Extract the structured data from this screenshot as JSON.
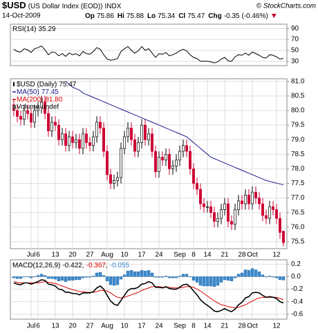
{
  "header": {
    "symbol": "$USD",
    "name": "(US Dollar Index (EOD))",
    "exchange": "INDX",
    "source": "© StockCharts.com",
    "date": "14-Oct-2009",
    "quote": [
      {
        "label": "Op",
        "value": 75.86
      },
      {
        "label": "Hi",
        "value": 75.88
      },
      {
        "label": "Lo",
        "value": 75.34
      },
      {
        "label": "Cl",
        "value": 75.47
      },
      {
        "label": "Chg",
        "value": -0.35
      }
    ],
    "change_pct": "(-0.46%)"
  },
  "chart_data": [
    {
      "type": "line",
      "name": "RSI(14)",
      "color": "#000000",
      "values": [
        52,
        48,
        47,
        53,
        51,
        46,
        53,
        55,
        58,
        51,
        42,
        47,
        46,
        40,
        44,
        39,
        45,
        42,
        44,
        40,
        48,
        44,
        43,
        48,
        55,
        52,
        42,
        34,
        32,
        33,
        35,
        48,
        53,
        57,
        50,
        45,
        49,
        57,
        50,
        53,
        45,
        37,
        44,
        43,
        46,
        40,
        42,
        45,
        49,
        52,
        49,
        42,
        37,
        35,
        30,
        30,
        30,
        29,
        27,
        29,
        34,
        37,
        31,
        30,
        38,
        42,
        41,
        45,
        41,
        47,
        44,
        41,
        37,
        36,
        42,
        41,
        38,
        34,
        35.29
      ],
      "ylim": [
        22,
        98
      ],
      "yticks": [
        90,
        70,
        50,
        30
      ],
      "grid": true
    },
    {
      "type": "candlestick",
      "series_name": "$USD (Daily)",
      "legend": "top-left",
      "grid": true,
      "up_color": "#ffffff",
      "down_color": "#cc0033",
      "categories": [
        null,
        null,
        null,
        null,
        null,
        "Jul",
        null,
        "6",
        null,
        null,
        null,
        null,
        "13",
        null,
        null,
        null,
        null,
        "20",
        null,
        null,
        null,
        null,
        "27",
        null,
        null,
        null,
        null,
        "Aug",
        null,
        null,
        null,
        null,
        "10",
        null,
        null,
        null,
        null,
        "17",
        null,
        null,
        null,
        null,
        "24",
        null,
        null,
        null,
        null,
        null,
        "Sep",
        null,
        null,
        null,
        "8",
        null,
        null,
        null,
        "14",
        null,
        null,
        null,
        null,
        "21",
        null,
        null,
        null,
        null,
        "28",
        null,
        null,
        "Oct",
        null,
        null,
        null,
        null,
        null,
        null,
        "12",
        null,
        null
      ],
      "open": [
        80.2,
        80.0,
        79.8,
        79.7,
        80.0,
        79.9,
        79.6,
        80.0,
        80.1,
        80.3,
        79.9,
        79.3,
        79.6,
        79.5,
        79.0,
        79.2,
        78.8,
        79.1,
        78.9,
        79.0,
        78.7,
        79.2,
        78.9,
        78.8,
        79.1,
        79.6,
        79.4,
        78.6,
        77.8,
        77.5,
        77.6,
        77.7,
        78.7,
        79.1,
        79.4,
        79.0,
        78.6,
        78.9,
        79.5,
        79.0,
        79.2,
        78.6,
        77.9,
        78.4,
        78.3,
        78.5,
        78.0,
        78.1,
        78.3,
        78.6,
        78.8,
        78.6,
        78.0,
        77.5,
        77.3,
        76.8,
        76.7,
        76.7,
        76.5,
        76.2,
        76.3,
        76.6,
        76.8,
        76.2,
        76.1,
        76.6,
        76.9,
        76.8,
        77.1,
        76.8,
        77.2,
        77.0,
        76.8,
        76.4,
        76.3,
        76.7,
        76.6,
        76.3,
        75.86
      ],
      "high": [
        80.4,
        80.2,
        80.0,
        80.2,
        80.2,
        80.1,
        80.2,
        80.3,
        80.5,
        80.5,
        80.1,
        79.8,
        79.8,
        79.7,
        79.4,
        79.4,
        79.3,
        79.3,
        79.2,
        79.2,
        79.4,
        79.4,
        79.1,
        79.3,
        79.8,
        79.8,
        79.6,
        78.8,
        78.0,
        77.8,
        77.9,
        78.9,
        79.3,
        79.6,
        79.6,
        79.2,
        79.1,
        79.7,
        79.7,
        79.4,
        79.4,
        78.8,
        78.6,
        78.6,
        78.7,
        78.7,
        78.3,
        78.5,
        78.8,
        79.0,
        79.0,
        78.8,
        78.2,
        77.7,
        77.5,
        77.0,
        76.9,
        76.9,
        76.7,
        76.5,
        76.8,
        77.0,
        77.0,
        76.4,
        76.8,
        77.1,
        77.1,
        77.3,
        77.3,
        77.4,
        77.4,
        77.2,
        77.0,
        76.6,
        76.9,
        76.9,
        76.8,
        76.5,
        75.88
      ],
      "low": [
        79.8,
        79.6,
        79.5,
        79.5,
        79.7,
        79.4,
        79.4,
        79.8,
        79.9,
        79.7,
        79.1,
        79.1,
        79.3,
        78.8,
        78.8,
        78.6,
        78.6,
        78.7,
        78.7,
        78.5,
        78.5,
        78.7,
        78.6,
        78.6,
        78.9,
        79.2,
        78.4,
        77.6,
        77.3,
        77.3,
        77.4,
        77.5,
        78.5,
        78.9,
        78.8,
        78.4,
        78.4,
        78.7,
        78.8,
        78.8,
        78.4,
        77.7,
        77.7,
        78.1,
        78.1,
        77.8,
        77.8,
        77.9,
        78.1,
        78.4,
        78.4,
        77.8,
        77.3,
        77.1,
        76.6,
        76.5,
        76.5,
        76.3,
        76.0,
        76.0,
        76.1,
        76.4,
        76.0,
        75.9,
        75.9,
        76.4,
        76.6,
        76.6,
        76.6,
        76.6,
        76.8,
        76.6,
        76.2,
        76.1,
        76.1,
        76.4,
        76.1,
        75.6,
        75.34
      ],
      "close": [
        80.0,
        79.8,
        79.7,
        80.0,
        79.9,
        79.6,
        80.0,
        80.1,
        80.3,
        79.9,
        79.3,
        79.6,
        79.5,
        79.0,
        79.2,
        78.8,
        79.1,
        78.9,
        79.0,
        78.7,
        79.2,
        78.9,
        78.8,
        79.1,
        79.6,
        79.4,
        78.6,
        77.8,
        77.5,
        77.6,
        77.7,
        78.7,
        79.1,
        79.4,
        79.0,
        78.6,
        78.9,
        79.5,
        79.0,
        79.2,
        78.6,
        77.9,
        78.4,
        78.3,
        78.5,
        78.0,
        78.1,
        78.3,
        78.6,
        78.8,
        78.6,
        78.0,
        77.5,
        77.3,
        76.8,
        76.7,
        76.7,
        76.5,
        76.2,
        76.3,
        76.6,
        76.8,
        76.2,
        76.1,
        76.6,
        76.9,
        76.8,
        77.1,
        76.8,
        77.2,
        77.0,
        76.8,
        76.4,
        76.3,
        76.7,
        76.6,
        76.3,
        75.82,
        75.47
      ],
      "series": [
        {
          "name": "MA(50)",
          "color": "#1a1a8c",
          "values": [
            null,
            null,
            null,
            null,
            null,
            null,
            null,
            null,
            null,
            null,
            null,
            null,
            null,
            null,
            null,
            81.0,
            80.9,
            80.8,
            80.75,
            80.7,
            80.6,
            80.55,
            80.5,
            80.45,
            80.4,
            80.35,
            80.3,
            80.25,
            80.2,
            80.15,
            80.1,
            80.05,
            80.0,
            79.95,
            79.9,
            79.85,
            79.8,
            79.75,
            79.7,
            79.65,
            79.6,
            79.55,
            79.5,
            79.45,
            79.4,
            79.35,
            79.3,
            79.25,
            79.2,
            79.15,
            79.1,
            79.0,
            78.9,
            78.8,
            78.7,
            78.6,
            78.5,
            78.4,
            78.35,
            78.3,
            78.25,
            78.2,
            78.15,
            78.1,
            78.05,
            78.0,
            77.95,
            77.9,
            77.85,
            77.8,
            77.75,
            77.7,
            77.65,
            77.6,
            77.57,
            77.54,
            77.51,
            77.48,
            77.45
          ]
        },
        {
          "name": "MA(200)",
          "color": "#dd0000",
          "value_label": "81.80"
        }
      ],
      "volume_label": "Volume undef",
      "ylim": [
        75.26,
        81.09
      ],
      "yticks": [
        75.5,
        {
          "value": 76,
          "label": "76.0"
        },
        76.5,
        {
          "value": 77,
          "label": "77.0"
        },
        77.5,
        {
          "value": 78,
          "label": "78.0"
        },
        78.5,
        {
          "value": 79,
          "label": "79.0"
        },
        79.5,
        {
          "value": 80,
          "label": "80.0"
        },
        80.5,
        {
          "value": 81,
          "label": "81.0"
        }
      ]
    },
    {
      "type": "macd",
      "name": "MACD(12,26,9)",
      "separator": ",",
      "grid": true,
      "categories": [
        null,
        null,
        null,
        null,
        null,
        "Jul",
        null,
        "6",
        null,
        null,
        null,
        null,
        "13",
        null,
        null,
        null,
        null,
        "20",
        null,
        null,
        null,
        null,
        "27",
        null,
        null,
        null,
        null,
        "Aug",
        null,
        null,
        null,
        null,
        "10",
        null,
        null,
        null,
        null,
        "17",
        null,
        null,
        null,
        null,
        "24",
        null,
        null,
        null,
        null,
        null,
        "Sep",
        null,
        null,
        null,
        "8",
        null,
        null,
        null,
        "14",
        null,
        null,
        null,
        null,
        "21",
        null,
        null,
        null,
        null,
        "28",
        null,
        null,
        "Oct",
        null,
        null,
        null,
        null,
        null,
        null,
        "12",
        null,
        null
      ],
      "macd": {
        "color": "#000000",
        "values": [
          -0.1,
          -0.12,
          -0.13,
          -0.1,
          -0.1,
          -0.12,
          -0.1,
          -0.08,
          -0.05,
          -0.06,
          -0.12,
          -0.13,
          -0.15,
          -0.2,
          -0.21,
          -0.25,
          -0.25,
          -0.27,
          -0.27,
          -0.29,
          -0.26,
          -0.26,
          -0.26,
          -0.24,
          -0.18,
          -0.15,
          -0.2,
          -0.3,
          -0.39,
          -0.44,
          -0.46,
          -0.38,
          -0.3,
          -0.22,
          -0.19,
          -0.19,
          -0.17,
          -0.12,
          -0.11,
          -0.08,
          -0.1,
          -0.17,
          -0.17,
          -0.18,
          -0.16,
          -0.19,
          -0.2,
          -0.2,
          -0.17,
          -0.13,
          -0.12,
          -0.16,
          -0.23,
          -0.29,
          -0.37,
          -0.42,
          -0.46,
          -0.5,
          -0.55,
          -0.56,
          -0.54,
          -0.51,
          -0.54,
          -0.56,
          -0.52,
          -0.45,
          -0.41,
          -0.34,
          -0.32,
          -0.26,
          -0.25,
          -0.26,
          -0.3,
          -0.33,
          -0.32,
          -0.33,
          -0.35,
          -0.4,
          -0.422
        ]
      },
      "signal": {
        "color": "#dd0000",
        "values": [
          -0.08,
          -0.09,
          -0.1,
          -0.1,
          -0.1,
          -0.1,
          -0.1,
          -0.1,
          -0.09,
          -0.08,
          -0.09,
          -0.1,
          -0.11,
          -0.13,
          -0.15,
          -0.17,
          -0.19,
          -0.21,
          -0.22,
          -0.24,
          -0.24,
          -0.25,
          -0.25,
          -0.25,
          -0.24,
          -0.22,
          -0.22,
          -0.23,
          -0.26,
          -0.3,
          -0.33,
          -0.34,
          -0.33,
          -0.31,
          -0.29,
          -0.27,
          -0.25,
          -0.22,
          -0.2,
          -0.18,
          -0.16,
          -0.16,
          -0.16,
          -0.17,
          -0.17,
          -0.17,
          -0.18,
          -0.18,
          -0.18,
          -0.17,
          -0.16,
          -0.16,
          -0.17,
          -0.2,
          -0.23,
          -0.27,
          -0.31,
          -0.35,
          -0.39,
          -0.42,
          -0.45,
          -0.46,
          -0.48,
          -0.49,
          -0.5,
          -0.49,
          -0.47,
          -0.45,
          -0.42,
          -0.39,
          -0.36,
          -0.34,
          -0.33,
          -0.33,
          -0.33,
          -0.33,
          -0.33,
          -0.35,
          -0.367
        ]
      },
      "histogram": {
        "color": "#3a8ad0",
        "values": [
          -0.02,
          -0.03,
          -0.03,
          0.0,
          0.0,
          -0.02,
          0.0,
          0.02,
          0.04,
          0.02,
          -0.03,
          -0.03,
          -0.04,
          -0.07,
          -0.06,
          -0.08,
          -0.06,
          -0.06,
          -0.05,
          -0.05,
          -0.02,
          -0.01,
          -0.01,
          0.01,
          0.06,
          0.07,
          0.02,
          -0.07,
          -0.13,
          -0.14,
          -0.13,
          -0.04,
          0.03,
          0.09,
          0.1,
          0.08,
          0.08,
          0.1,
          0.09,
          0.1,
          0.06,
          -0.01,
          -0.01,
          -0.01,
          0.01,
          -0.02,
          -0.02,
          -0.02,
          0.01,
          0.04,
          0.04,
          0.0,
          -0.06,
          -0.09,
          -0.14,
          -0.15,
          -0.15,
          -0.15,
          -0.16,
          -0.14,
          -0.09,
          -0.05,
          -0.06,
          -0.07,
          -0.02,
          0.04,
          0.06,
          0.11,
          0.1,
          0.13,
          0.11,
          0.08,
          0.03,
          0.0,
          0.01,
          0.0,
          -0.02,
          -0.05,
          -0.055
        ]
      },
      "ylim": [
        -0.68,
        0.27
      ],
      "yticks": [
        0.2,
        {
          "value": 0,
          "label": "0.0"
        },
        -0.2,
        -0.4,
        -0.6
      ]
    }
  ]
}
